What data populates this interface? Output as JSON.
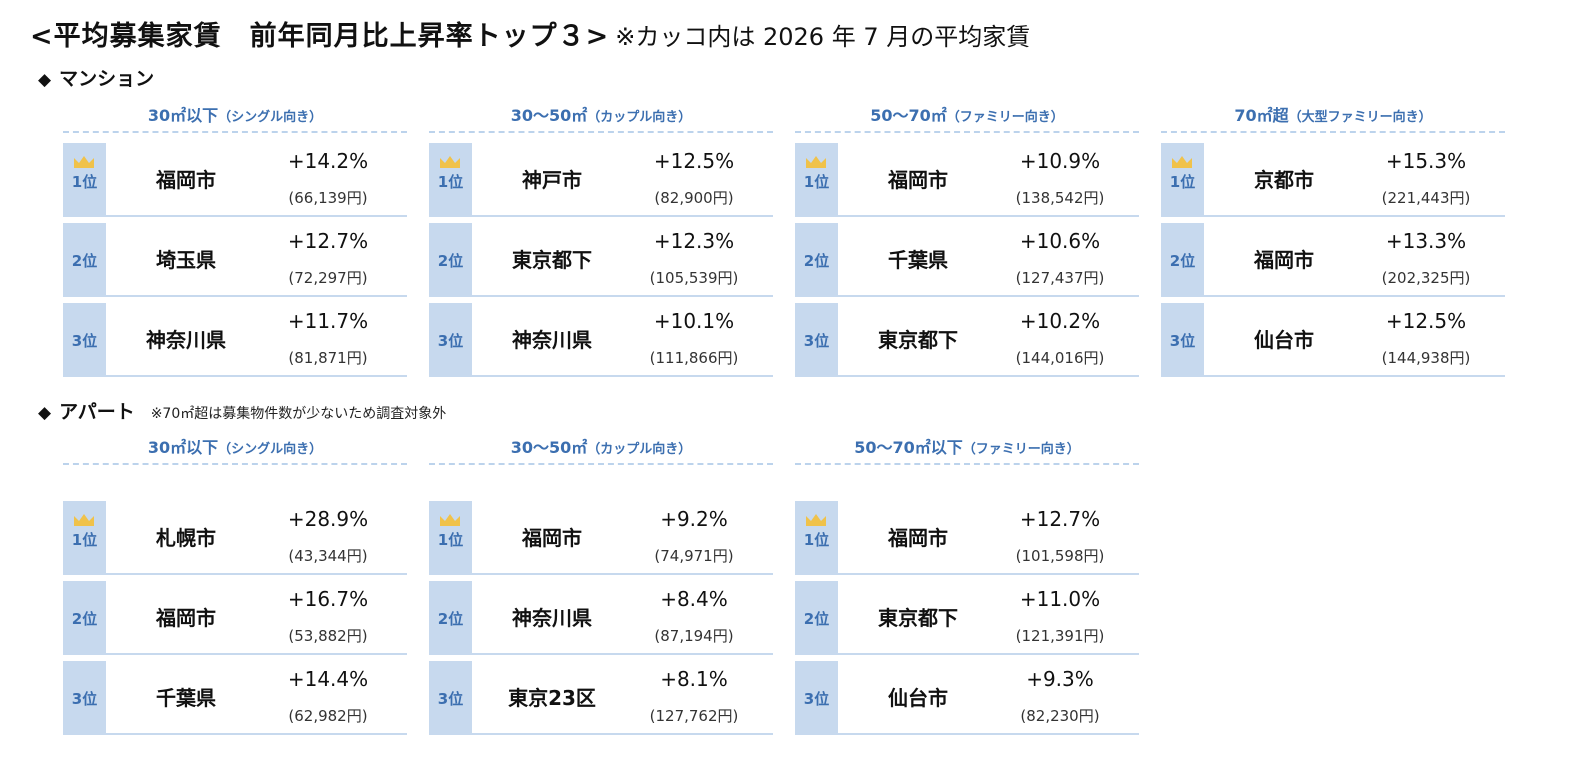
{
  "title": {
    "main": "<平均募集家賃　前年同月比上昇率トップ３>",
    "note": "※カッコ内は 2026 年 7 月の平均家賃"
  },
  "sections": [
    {
      "label": "マンション",
      "note": "",
      "groups": [
        {
          "head": "30㎡以下",
          "paren": "（シングル向き）",
          "rows": [
            {
              "rank": "1位",
              "city": "福岡市",
              "rate": "+14.2%",
              "rent": "(66,139円)"
            },
            {
              "rank": "2位",
              "city": "埼玉県",
              "rate": "+12.7%",
              "rent": "(72,297円)"
            },
            {
              "rank": "3位",
              "city": "神奈川県",
              "rate": "+11.7%",
              "rent": "(81,871円)"
            }
          ]
        },
        {
          "head": "30～50㎡",
          "paren": "（カップル向き）",
          "rows": [
            {
              "rank": "1位",
              "city": "神戸市",
              "rate": "+12.5%",
              "rent": "(82,900円)"
            },
            {
              "rank": "2位",
              "city": "東京都下",
              "rate": "+12.3%",
              "rent": "(105,539円)"
            },
            {
              "rank": "3位",
              "city": "神奈川県",
              "rate": "+10.1%",
              "rent": "(111,866円)"
            }
          ]
        },
        {
          "head": "50～70㎡",
          "paren": "（ファミリー向き）",
          "rows": [
            {
              "rank": "1位",
              "city": "福岡市",
              "rate": "+10.9%",
              "rent": "(138,542円)"
            },
            {
              "rank": "2位",
              "city": "千葉県",
              "rate": "+10.6%",
              "rent": "(127,437円)"
            },
            {
              "rank": "3位",
              "city": "東京都下",
              "rate": "+10.2%",
              "rent": "(144,016円)"
            }
          ]
        },
        {
          "head": "70㎡超",
          "paren": "（大型ファミリー向き）",
          "rows": [
            {
              "rank": "1位",
              "city": "京都市",
              "rate": "+15.3%",
              "rent": "(221,443円)"
            },
            {
              "rank": "2位",
              "city": "福岡市",
              "rate": "+13.3%",
              "rent": "(202,325円)"
            },
            {
              "rank": "3位",
              "city": "仙台市",
              "rate": "+12.5%",
              "rent": "(144,938円)"
            }
          ]
        }
      ]
    },
    {
      "label": "アパート",
      "note": "※70㎡超は募集物件数が少ないため調査対象外",
      "groups": [
        {
          "head": "30㎡以下",
          "paren": "（シングル向き）",
          "rows": [
            {
              "rank": "1位",
              "city": "札幌市",
              "rate": "+28.9%",
              "rent": "(43,344円)"
            },
            {
              "rank": "2位",
              "city": "福岡市",
              "rate": "+16.7%",
              "rent": "(53,882円)"
            },
            {
              "rank": "3位",
              "city": "千葉県",
              "rate": "+14.4%",
              "rent": "(62,982円)"
            }
          ]
        },
        {
          "head": "30～50㎡",
          "paren": "（カップル向き）",
          "rows": [
            {
              "rank": "1位",
              "city": "福岡市",
              "rate": "+9.2%",
              "rent": "(74,971円)"
            },
            {
              "rank": "2位",
              "city": "神奈川県",
              "rate": "+8.4%",
              "rent": "(87,194円)"
            },
            {
              "rank": "3位",
              "city": "東京23区",
              "rate": "+8.1%",
              "rent": "(127,762円)"
            }
          ]
        },
        {
          "head": "50～70㎡以下",
          "paren": "（ファミリー向き）",
          "rows": [
            {
              "rank": "1位",
              "city": "福岡市",
              "rate": "+12.7%",
              "rent": "(101,598円)"
            },
            {
              "rank": "2位",
              "city": "東京都下",
              "rate": "+11.0%",
              "rent": "(121,391円)"
            },
            {
              "rank": "3位",
              "city": "仙台市",
              "rate": "+9.3%",
              "rent": "(82,230円)"
            }
          ]
        }
      ]
    }
  ],
  "colors": {
    "accent": "#3c6fb0",
    "rank_bg": "#c7d9ee",
    "crown": "#f0c24a"
  },
  "icons": {
    "crown": "crown-icon",
    "diamond": "diamond-icon"
  }
}
